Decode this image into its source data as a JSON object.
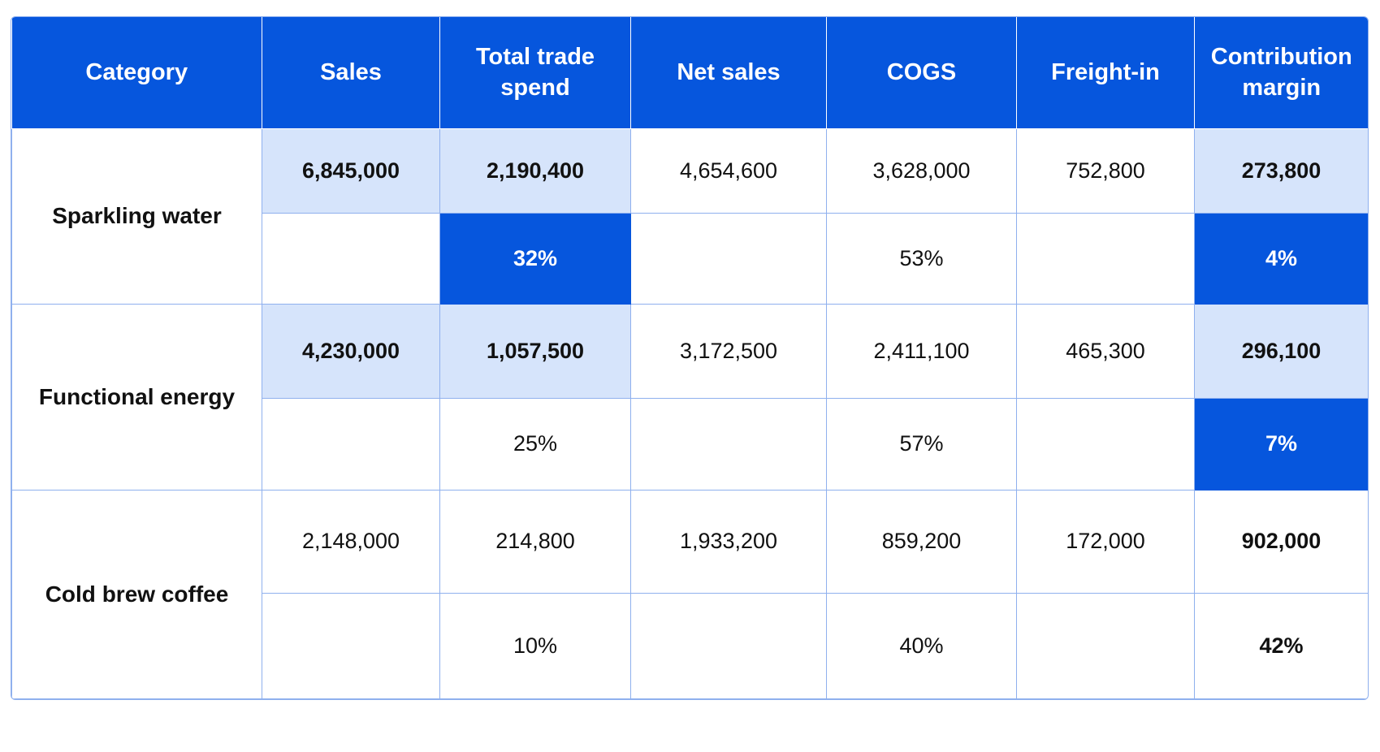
{
  "table": {
    "headers": [
      "Category",
      "Sales",
      "Total trade spend",
      "Net sales",
      "COGS",
      "Freight-in",
      "Contribution margin"
    ],
    "rows": [
      {
        "category": "Sparkling water",
        "values": [
          "6,845,000",
          "2,190,400",
          "4,654,600",
          "3,628,000",
          "752,800",
          "273,800"
        ],
        "percents": [
          null,
          "32%",
          null,
          "53%",
          null,
          "4%"
        ]
      },
      {
        "category": "Functional energy",
        "values": [
          "4,230,000",
          "1,057,500",
          "3,172,500",
          "2,411,100",
          "465,300",
          "296,100"
        ],
        "percents": [
          null,
          "25%",
          null,
          "57%",
          null,
          "7%"
        ]
      },
      {
        "category": "Cold brew coffee",
        "values": [
          "2,148,000",
          "214,800",
          "1,933,200",
          "859,200",
          "172,000",
          "902,000"
        ],
        "percents": [
          null,
          "10%",
          null,
          "40%",
          null,
          "42%"
        ]
      }
    ]
  }
}
